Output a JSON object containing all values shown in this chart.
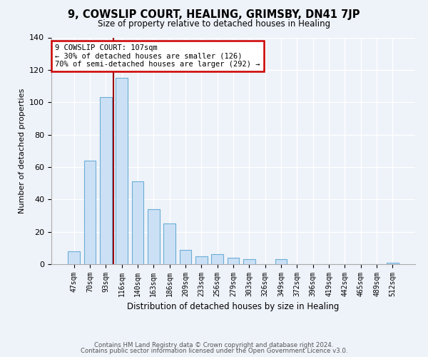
{
  "title": "9, COWSLIP COURT, HEALING, GRIMSBY, DN41 7JP",
  "subtitle": "Size of property relative to detached houses in Healing",
  "xlabel": "Distribution of detached houses by size in Healing",
  "ylabel": "Number of detached properties",
  "bar_labels": [
    "47sqm",
    "70sqm",
    "93sqm",
    "116sqm",
    "140sqm",
    "163sqm",
    "186sqm",
    "209sqm",
    "233sqm",
    "256sqm",
    "279sqm",
    "303sqm",
    "326sqm",
    "349sqm",
    "372sqm",
    "396sqm",
    "419sqm",
    "442sqm",
    "465sqm",
    "489sqm",
    "512sqm"
  ],
  "bar_values": [
    8,
    64,
    103,
    115,
    51,
    34,
    25,
    9,
    5,
    6,
    4,
    3,
    0,
    3,
    0,
    0,
    0,
    0,
    0,
    0,
    1
  ],
  "bar_color": "#cce0f5",
  "bar_edge_color": "#6aaed6",
  "red_line_color": "#990000",
  "red_line_x": 2.5,
  "annotation_text": "9 COWSLIP COURT: 107sqm\n← 30% of detached houses are smaller (126)\n70% of semi-detached houses are larger (292) →",
  "annotation_box_color": "#ffffff",
  "annotation_box_edge_color": "#cc0000",
  "ylim": [
    0,
    140
  ],
  "yticks": [
    0,
    20,
    40,
    60,
    80,
    100,
    120,
    140
  ],
  "footer_line1": "Contains HM Land Registry data © Crown copyright and database right 2024.",
  "footer_line2": "Contains public sector information licensed under the Open Government Licence v3.0.",
  "background_color": "#eef2f9",
  "plot_bg_color": "#eef2f9",
  "grid_color": "#ffffff",
  "title_fontsize": 10.5,
  "subtitle_fontsize": 8.5
}
